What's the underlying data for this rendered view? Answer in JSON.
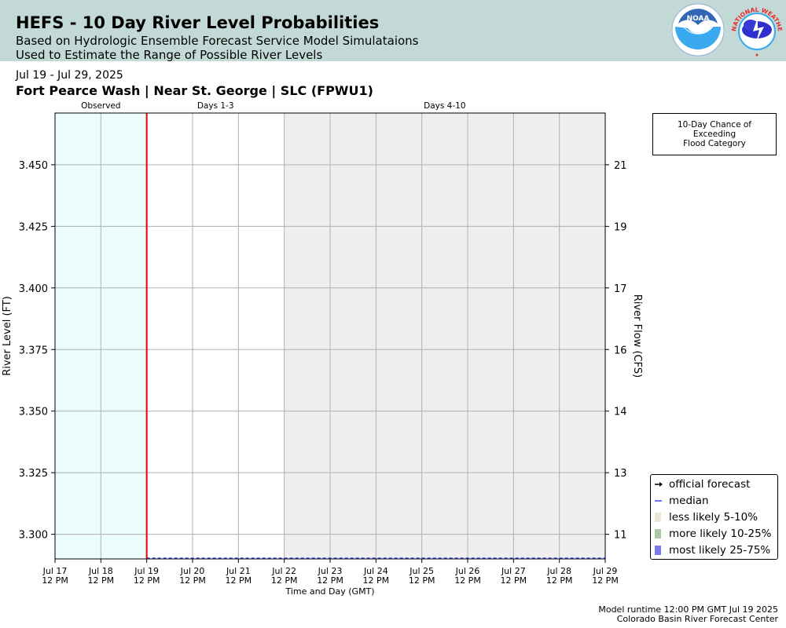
{
  "header": {
    "title": "HEFS - 10 Day River Level Probabilities",
    "subtitle_line1": "Based on Hydrologic Ensemble Forecast Service Model Simulataions",
    "subtitle_line2": "Used to Estimate the Range of Possible River Levels",
    "noaa_logo_text": "NOAA",
    "nws_logo_text": "NATIONAL WEATHER SERVICE"
  },
  "date_range": "Jul 19 - Jul 29, 2025",
  "station": "Fort Pearce Wash | Near St. George | SLC (FPWU1)",
  "flood_box": {
    "line1": "10-Day Chance of",
    "line2": "Exceeding",
    "line3": "Flood Category"
  },
  "legend": {
    "items": [
      {
        "label": "official forecast",
        "kind": "arrow",
        "color": "#000000"
      },
      {
        "label": "median",
        "kind": "line",
        "color": "#3f3fff"
      },
      {
        "label": "less likely 5-10%",
        "kind": "box",
        "color": "#ece6d8"
      },
      {
        "label": "more likely 10-25%",
        "kind": "box",
        "color": "#a9c9a4"
      },
      {
        "label": "most likely 25-75%",
        "kind": "box",
        "color": "#7b7bef"
      }
    ]
  },
  "footer": {
    "runtime": "Model runtime 12:00 PM GMT Jul 19 2025",
    "center": "Colorado Basin River Forecast Center"
  },
  "chart_data": {
    "type": "line",
    "xlabel": "Time and Day (GMT)",
    "ylabel": "River Level (FT)",
    "y2label": "River Flow (CFS)",
    "x_categories": [
      "Jul 17\n12 PM",
      "Jul 18\n12 PM",
      "Jul 19\n12 PM",
      "Jul 20\n12 PM",
      "Jul 21\n12 PM",
      "Jul 22\n12 PM",
      "Jul 23\n12 PM",
      "Jul 24\n12 PM",
      "Jul 25\n12 PM",
      "Jul 26\n12 PM",
      "Jul 27\n12 PM",
      "Jul 28\n12 PM",
      "Jul 29\n12 PM"
    ],
    "ylim": [
      3.29,
      3.471
    ],
    "yticks": [
      "3.300",
      "3.325",
      "3.350",
      "3.375",
      "3.400",
      "3.425",
      "3.450"
    ],
    "ytick_values": [
      3.3,
      3.325,
      3.35,
      3.375,
      3.4,
      3.425,
      3.45
    ],
    "y2ticks": [
      "11",
      "13",
      "14",
      "16",
      "17",
      "19",
      "21"
    ],
    "regions": [
      {
        "label": "Observed",
        "from": 0,
        "to": 2,
        "color": "#ebfdfc"
      },
      {
        "label": "Days 1-3",
        "from": 2,
        "to": 5,
        "color": "#ffffff"
      },
      {
        "label": "Days 4-10",
        "from": 5,
        "to": 12,
        "color": "#efefef"
      }
    ],
    "forecast_start_index": 2,
    "series": [
      {
        "name": "median",
        "x_from": 2,
        "x_to": 12,
        "value": 3.29,
        "color": "#3f3fff"
      }
    ],
    "grid": true
  }
}
